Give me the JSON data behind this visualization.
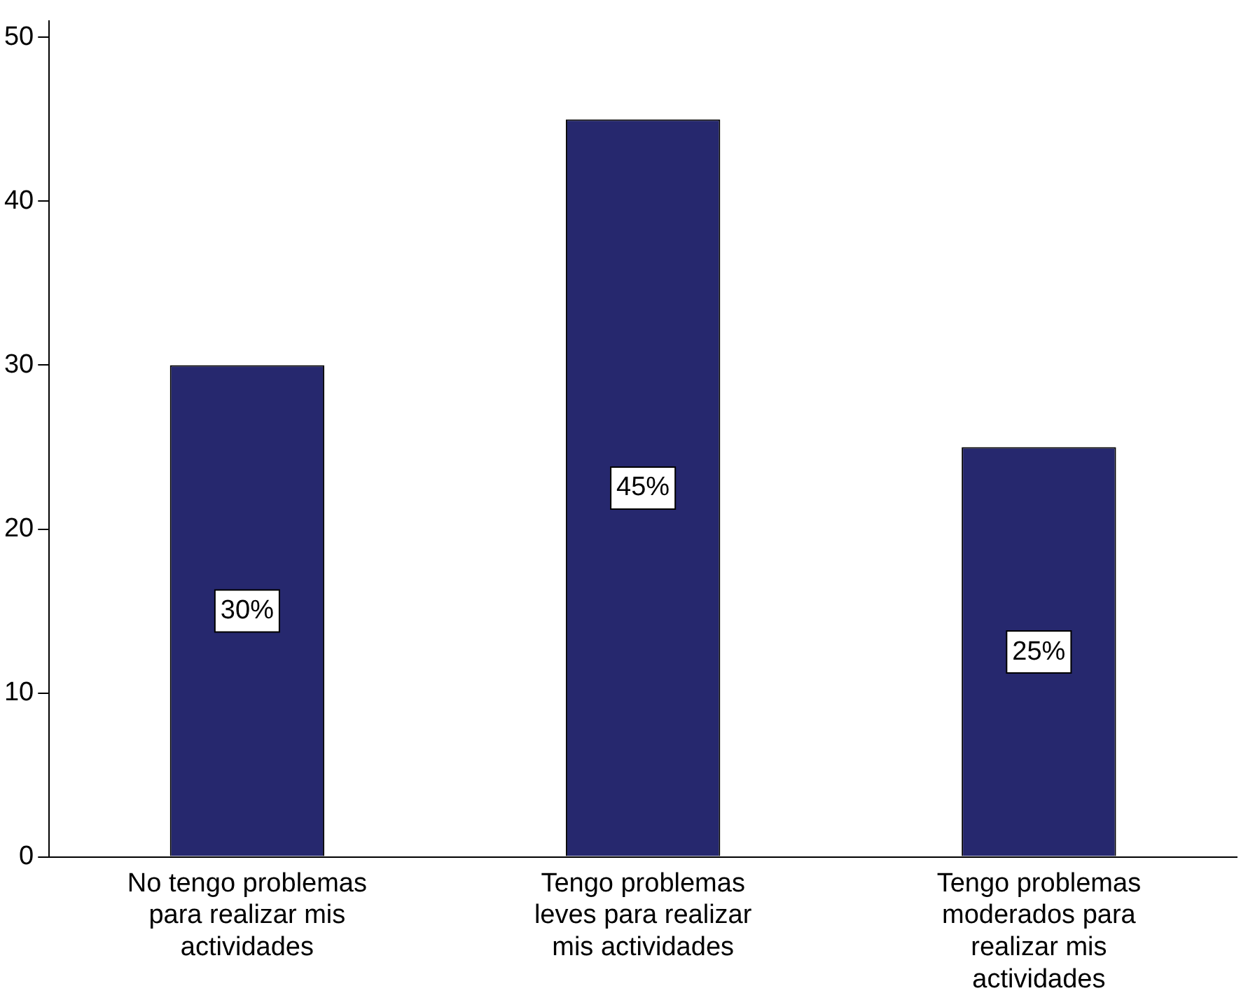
{
  "chart_data": {
    "type": "bar",
    "categories": [
      "No tengo problemas para realizar mis actividades",
      "Tengo problemas leves para realizar mis actividades",
      "Tengo problemas moderados para realizar mis actividades"
    ],
    "values": [
      30,
      45,
      25
    ],
    "value_labels": [
      "30%",
      "45%",
      "25%"
    ],
    "color": "#26286e",
    "ylim": [
      0,
      51
    ],
    "yticks": [
      0,
      10,
      20,
      30,
      40,
      50
    ],
    "grid": false,
    "legend": false
  }
}
